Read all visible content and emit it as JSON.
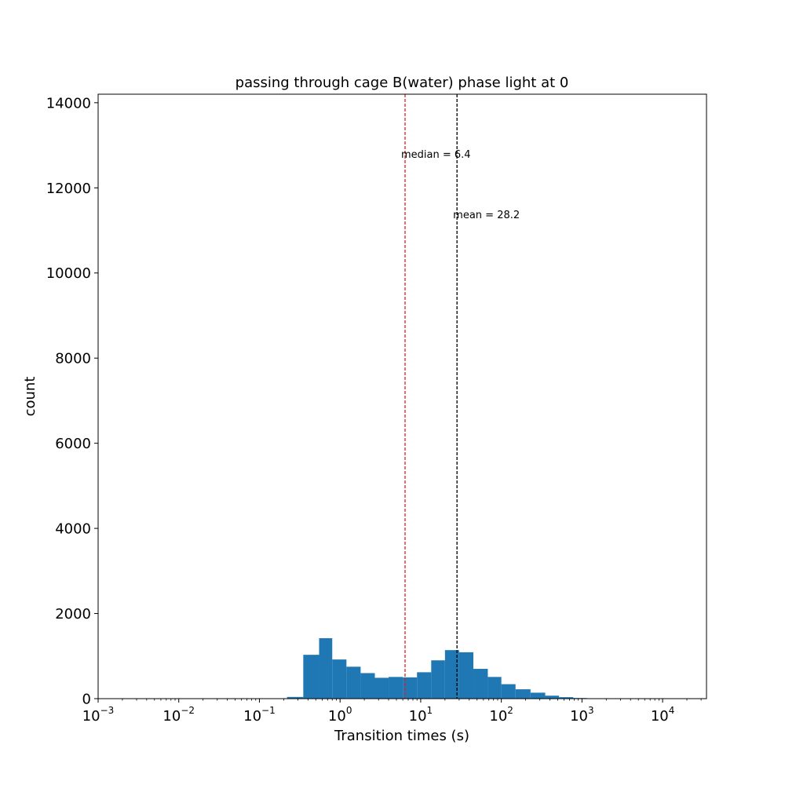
{
  "chart_data": {
    "type": "bar",
    "title": "passing through cage B(water) phase light at 0",
    "xlabel": "Transition times (s)",
    "ylabel": "count",
    "xscale": "log",
    "xlim": [
      0.001,
      35000
    ],
    "ylim": [
      0,
      14200
    ],
    "grid": false,
    "colors": {
      "bars": "#1f77b4",
      "median_line": "#d62728",
      "mean_line": "#000000"
    },
    "x_ticks": [
      {
        "value": 0.001,
        "base": "10",
        "exp": "−3"
      },
      {
        "value": 0.01,
        "base": "10",
        "exp": "−2"
      },
      {
        "value": 0.1,
        "base": "10",
        "exp": "−1"
      },
      {
        "value": 1,
        "base": "10",
        "exp": "0"
      },
      {
        "value": 10,
        "base": "10",
        "exp": "1"
      },
      {
        "value": 100,
        "base": "10",
        "exp": "2"
      },
      {
        "value": 1000,
        "base": "10",
        "exp": "3"
      },
      {
        "value": 10000,
        "base": "10",
        "exp": "4"
      }
    ],
    "y_ticks": [
      0,
      2000,
      4000,
      6000,
      8000,
      10000,
      12000,
      14000
    ],
    "bins": [
      {
        "x0": 0.22,
        "x1": 0.35,
        "count": 40
      },
      {
        "x0": 0.35,
        "x1": 0.55,
        "count": 1030
      },
      {
        "x0": 0.55,
        "x1": 0.8,
        "count": 1420
      },
      {
        "x0": 0.8,
        "x1": 1.2,
        "count": 920
      },
      {
        "x0": 1.2,
        "x1": 1.8,
        "count": 750
      },
      {
        "x0": 1.8,
        "x1": 2.7,
        "count": 600
      },
      {
        "x0": 2.7,
        "x1": 4.0,
        "count": 490
      },
      {
        "x0": 4.0,
        "x1": 6.0,
        "count": 510
      },
      {
        "x0": 6.0,
        "x1": 9.0,
        "count": 500
      },
      {
        "x0": 9.0,
        "x1": 13.5,
        "count": 620
      },
      {
        "x0": 13.5,
        "x1": 20.0,
        "count": 900
      },
      {
        "x0": 20.0,
        "x1": 30.0,
        "count": 1140
      },
      {
        "x0": 30.0,
        "x1": 45.0,
        "count": 1090
      },
      {
        "x0": 45.0,
        "x1": 68.0,
        "count": 700
      },
      {
        "x0": 68.0,
        "x1": 100.0,
        "count": 510
      },
      {
        "x0": 100.0,
        "x1": 150.0,
        "count": 340
      },
      {
        "x0": 150.0,
        "x1": 230.0,
        "count": 220
      },
      {
        "x0": 230.0,
        "x1": 350.0,
        "count": 140
      },
      {
        "x0": 350.0,
        "x1": 520.0,
        "count": 70
      },
      {
        "x0": 520.0,
        "x1": 780.0,
        "count": 35
      },
      {
        "x0": 780.0,
        "x1": 1150.0,
        "count": 15
      }
    ],
    "vlines": [
      {
        "name": "median",
        "x": 6.4,
        "color": "#d62728",
        "label": "median = 6.4",
        "label_y": 12800
      },
      {
        "name": "mean",
        "x": 28.2,
        "color": "#000000",
        "label": "mean = 28.2",
        "label_y": 11380
      }
    ]
  }
}
